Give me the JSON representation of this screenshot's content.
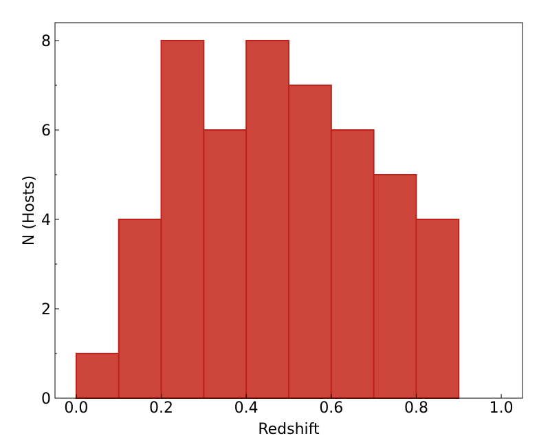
{
  "chart_data": {
    "type": "bar",
    "title": "",
    "xlabel": "Redshift",
    "ylabel": "N (Hosts)",
    "xlim": [
      -0.05,
      1.05
    ],
    "ylim": [
      0,
      8.4
    ],
    "bin_edges": [
      0.0,
      0.1,
      0.2,
      0.3,
      0.4,
      0.5,
      0.6,
      0.7,
      0.8,
      0.9,
      1.0
    ],
    "values": [
      1,
      4,
      8,
      6,
      8,
      7,
      6,
      5,
      4,
      0
    ],
    "x_ticks": [
      0.0,
      0.2,
      0.4,
      0.6,
      0.8,
      1.0
    ],
    "x_tick_labels": [
      "0.0",
      "0.2",
      "0.4",
      "0.6",
      "0.8",
      "1.0"
    ],
    "y_ticks": [
      0,
      2,
      4,
      6,
      8
    ],
    "y_tick_labels": [
      "0",
      "2",
      "4",
      "6",
      "8"
    ],
    "y_minor_ticks": [
      1,
      3,
      5,
      7
    ],
    "grid": false,
    "legend": "none",
    "colors": {
      "bar_fill": "#cd443a",
      "bar_edge": "#bd2119",
      "axes": "#000000"
    }
  }
}
